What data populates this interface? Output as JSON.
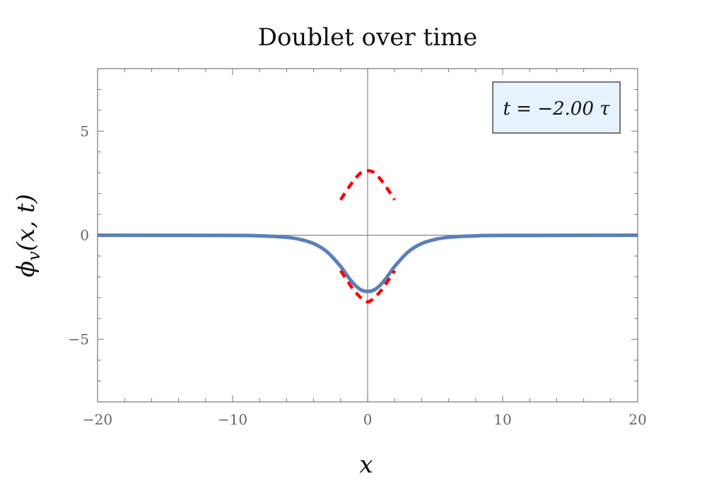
{
  "chart_data": {
    "type": "line",
    "title": "Doublet over time",
    "xlabel": "x",
    "ylabel": "ϕ_v(x, t)",
    "xlim": [
      -20,
      20
    ],
    "ylim": [
      -8,
      8
    ],
    "x_ticks": [
      -20,
      -10,
      0,
      10,
      20
    ],
    "y_ticks": [
      -5,
      0,
      5
    ],
    "x_tick_labels": [
      "−20",
      "−10",
      "0",
      "10",
      "20"
    ],
    "y_tick_labels": [
      "−5",
      "0",
      "5"
    ],
    "grid": false,
    "annotation": "t = −2.00 τ",
    "annotation_position": "top-right",
    "series": [
      {
        "style": "solid",
        "color": "#5b7fb8",
        "x": [
          -20,
          -10,
          -8,
          -6,
          -5,
          -4,
          -3,
          -2,
          -1.5,
          -1,
          -0.5,
          0,
          0.5,
          1,
          1.5,
          2,
          3,
          4,
          5,
          6,
          8,
          10,
          20
        ],
        "y": [
          0,
          -0.01,
          -0.03,
          -0.1,
          -0.2,
          -0.4,
          -0.8,
          -1.5,
          -1.95,
          -2.35,
          -2.62,
          -2.7,
          -2.62,
          -2.35,
          -1.95,
          -1.5,
          -0.8,
          -0.4,
          -0.2,
          -0.1,
          -0.03,
          -0.01,
          0
        ]
      },
      {
        "style": "dashed",
        "color": "#ff0000",
        "x": [
          -2,
          -1.5,
          -1,
          -0.5,
          0,
          0.5,
          1,
          1.5,
          2
        ],
        "y": [
          1.7,
          2.2,
          2.65,
          3.0,
          3.1,
          3.0,
          2.65,
          2.2,
          1.7
        ]
      },
      {
        "style": "dashed",
        "color": "#ff0000",
        "x": [
          -2,
          -1.5,
          -1,
          -0.5,
          0,
          0.5,
          1,
          1.5,
          2
        ],
        "y": [
          -1.7,
          -2.2,
          -2.65,
          -3.0,
          -3.2,
          -3.0,
          -2.65,
          -2.2,
          -1.7
        ]
      }
    ]
  }
}
